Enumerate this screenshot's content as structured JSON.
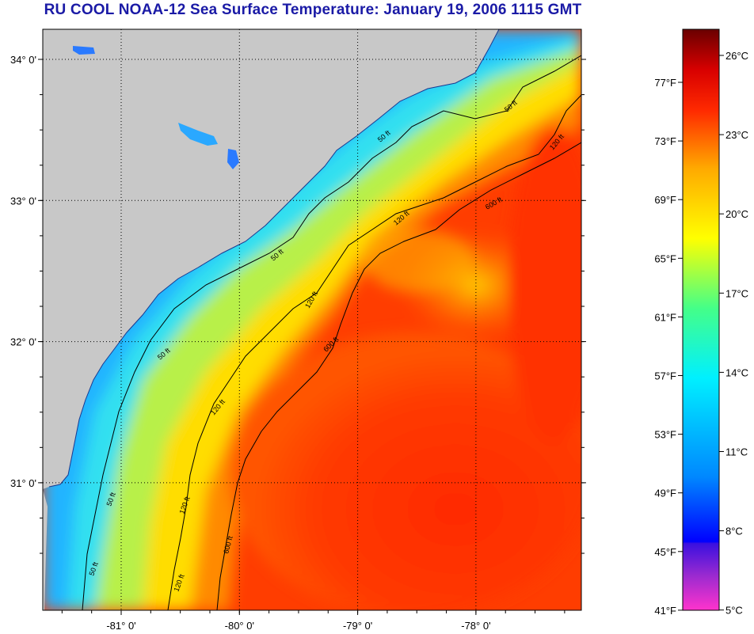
{
  "title": "RU COOL  NOAA-12  Sea Surface Temperature:  January 19, 2006 1115 GMT",
  "map": {
    "lat_labels": [
      {
        "lat": 34.0,
        "label": "34° 0'"
      },
      {
        "lat": 33.0,
        "label": "33° 0'"
      },
      {
        "lat": 32.0,
        "label": "32° 0'"
      },
      {
        "lat": 31.0,
        "label": "31° 0'"
      }
    ],
    "lon_labels": [
      {
        "lon": -81.0,
        "label": "-81° 0'"
      },
      {
        "lon": -80.0,
        "label": "-80° 0'"
      },
      {
        "lon": -79.0,
        "label": "-79° 0'"
      },
      {
        "lon": -78.0,
        "label": "-78° 0'"
      }
    ],
    "contour_labels": [
      "50 ft",
      "120 ft",
      "600 ft"
    ],
    "land_color": "#c8c8c8",
    "grid": "dotted"
  },
  "colorbar": {
    "fahrenheit_labels": [
      "77°F",
      "73°F",
      "69°F",
      "65°F",
      "61°F",
      "57°F",
      "53°F",
      "49°F",
      "45°F",
      "41°F"
    ],
    "celsius_labels": [
      "26°C",
      "23°C",
      "20°C",
      "17°C",
      "14°C",
      "11°C",
      "8°C",
      "5°C"
    ],
    "range_c": [
      5,
      27.2
    ],
    "colors": [
      "#ff33cc",
      "#7a1fd6",
      "#0000ff",
      "#0077ff",
      "#00e5ff",
      "#3dff8a",
      "#ffff00",
      "#ffaa00",
      "#ff3300",
      "#ff0000",
      "#c00000",
      "#6a0000"
    ]
  }
}
